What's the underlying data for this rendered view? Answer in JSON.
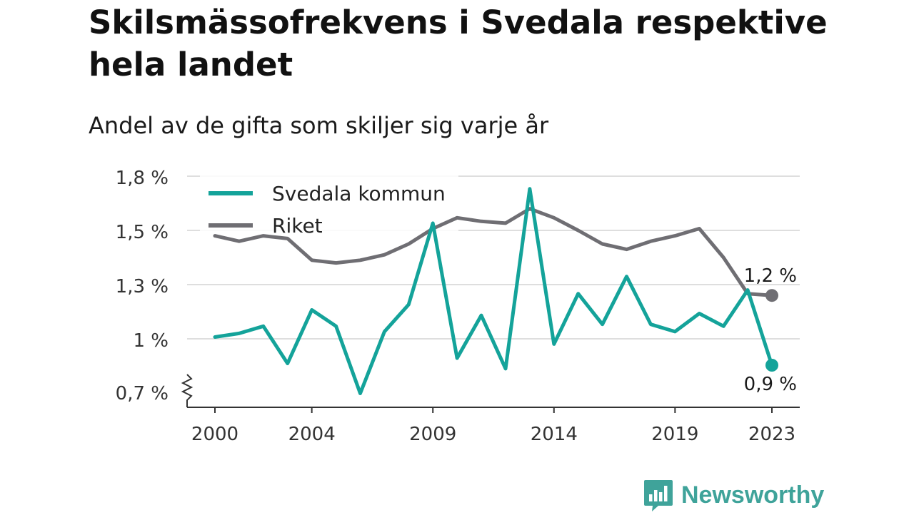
{
  "title": "Skilsmässofrekvens i Svedala respektive hela landet",
  "subtitle": "Andel av de gifta som skiljer sig varje år",
  "brand": {
    "name": "Newsworthy",
    "icon": "newsworthy-logo-icon",
    "color": "#3fa39a"
  },
  "chart_data": {
    "type": "line",
    "title": "Skilsmässofrekvens i Svedala respektive hela landet",
    "subtitle": "Andel av de gifta som skiljer sig varje år",
    "x": [
      2000,
      2001,
      2002,
      2003,
      2004,
      2005,
      2006,
      2007,
      2008,
      2009,
      2010,
      2011,
      2012,
      2013,
      2014,
      2015,
      2016,
      2017,
      2018,
      2019,
      2020,
      2021,
      2022,
      2023
    ],
    "xticks": [
      2000,
      2004,
      2009,
      2014,
      2019,
      2023
    ],
    "xtick_labels": [
      "2000",
      "2004",
      "2009",
      "2014",
      "2019",
      "2023"
    ],
    "yticks": [
      0.7,
      1.0,
      1.3,
      1.5,
      1.8
    ],
    "ytick_labels": [
      "0,7 %",
      "1 %",
      "1,3 %",
      "1,5 %",
      "1,8 %"
    ],
    "y_axis_break": true,
    "grid": true,
    "legend_position": "top-left",
    "series": [
      {
        "name": "Svedala kommun",
        "color": "#14a39a",
        "values": [
          1.01,
          1.03,
          1.07,
          0.86,
          1.16,
          1.07,
          0.69,
          1.04,
          1.19,
          1.54,
          0.89,
          1.13,
          0.83,
          1.73,
          0.97,
          1.25,
          1.08,
          1.33,
          1.08,
          1.04,
          1.14,
          1.07,
          1.27,
          0.85
        ],
        "end_label": "0,9 %"
      },
      {
        "name": "Riket",
        "color": "#6f6e73",
        "values": [
          1.48,
          1.46,
          1.48,
          1.47,
          1.39,
          1.38,
          1.39,
          1.41,
          1.45,
          1.51,
          1.57,
          1.55,
          1.54,
          1.62,
          1.57,
          1.5,
          1.45,
          1.43,
          1.46,
          1.48,
          1.51,
          1.4,
          1.25,
          1.24
        ],
        "end_label": "1,2 %"
      }
    ]
  }
}
